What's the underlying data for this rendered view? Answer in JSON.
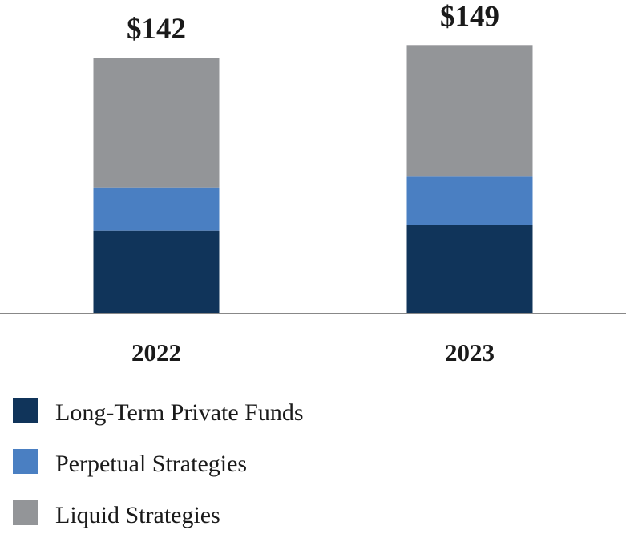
{
  "chart_data": {
    "type": "bar",
    "stacked": true,
    "categories": [
      "2022",
      "2023"
    ],
    "totals": [
      "$142",
      "$149"
    ],
    "total_values": [
      142,
      149
    ],
    "series": [
      {
        "name": "Long-Term Private Funds",
        "color": "#10345a",
        "values": [
          46,
          49
        ]
      },
      {
        "name": "Perpetual Strategies",
        "color": "#4a7fc2",
        "values": [
          24,
          27
        ]
      },
      {
        "name": "Liquid Strategies",
        "color": "#939598",
        "values": [
          72,
          73
        ]
      }
    ],
    "ylim": [
      0,
      142
    ],
    "grid": false,
    "axis_line_color": "#888888",
    "legend_position": "bottom-left",
    "title": "",
    "xlabel": "",
    "ylabel": ""
  }
}
